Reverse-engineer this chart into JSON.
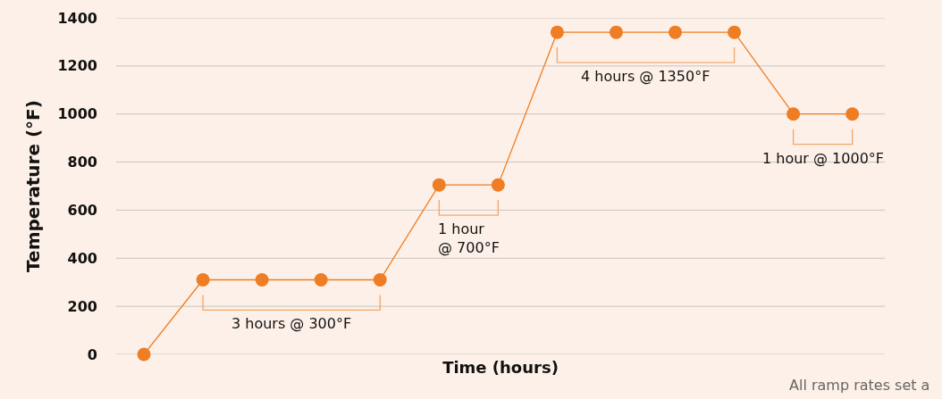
{
  "chart_data": {
    "type": "line",
    "xlabel": "Time (hours)",
    "ylabel": "Temperature (°F)",
    "categories": [
      null,
      null,
      null,
      null,
      null,
      null,
      null,
      null,
      null,
      null,
      null,
      null,
      null
    ],
    "series": [
      {
        "color": "#ee7d23",
        "values": [
          0,
          310,
          310,
          310,
          310,
          705,
          705,
          1340,
          1340,
          1340,
          1340,
          1000,
          1000
        ]
      }
    ],
    "ylim": [
      0,
      1400
    ],
    "yticks": [
      0,
      200,
      400,
      600,
      800,
      1000,
      1200,
      1400
    ],
    "grid": "y",
    "marker": "circle",
    "line_style": "solid",
    "tick_labels": "y",
    "annotations": [
      "3 hours @ 300°F",
      "1 hour\n@ 700°F",
      "4 hours @ 1350°F",
      "1 hour @ 1000°F",
      "All ramp rates set a"
    ]
  }
}
